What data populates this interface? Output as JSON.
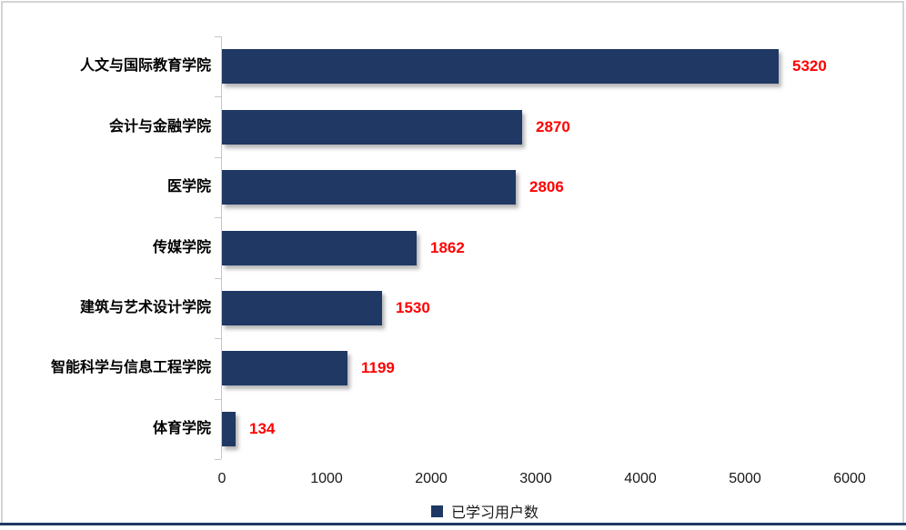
{
  "chart_data": {
    "type": "bar",
    "orientation": "horizontal",
    "title": "",
    "categories": [
      "人文与国际教育学院",
      "会计与金融学院",
      "医学院",
      "传媒学院",
      "建筑与艺术设计学院",
      "智能科学与信息工程学院",
      "体育学院"
    ],
    "values": [
      5320,
      2870,
      2806,
      1862,
      1530,
      1199,
      134
    ],
    "series_name": "已学习用户数",
    "xlim": [
      0,
      6000
    ],
    "x_ticks": [
      0,
      1000,
      2000,
      3000,
      4000,
      5000,
      6000
    ],
    "grid": false,
    "legend_position": "bottom",
    "bar_color": "#1F3864",
    "value_label_color": "#FF0000",
    "axis_color": "#C6C6C6",
    "accent_line_color": "#1F3864"
  },
  "legend": {
    "label": "已学习用户数",
    "swatch_color": "#1F3864"
  }
}
